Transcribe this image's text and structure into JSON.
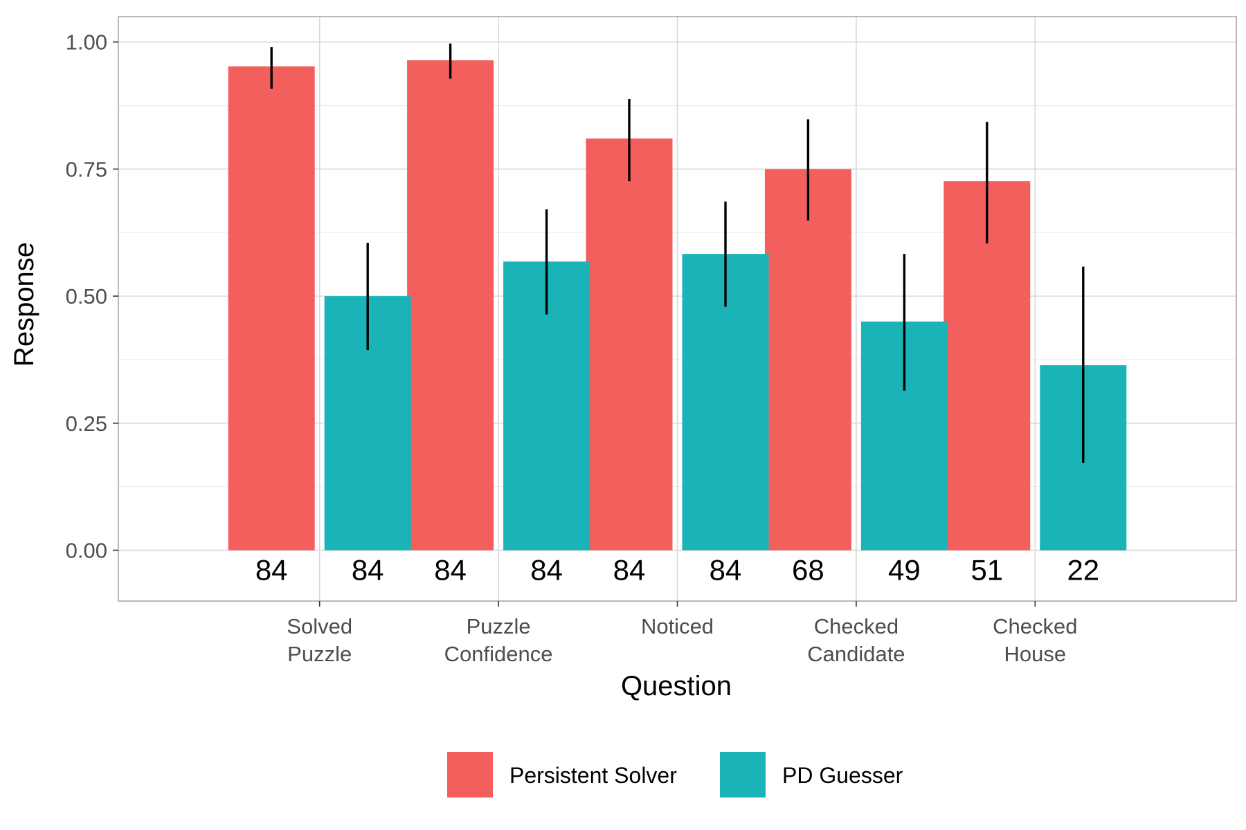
{
  "chart_data": {
    "type": "bar",
    "xlabel": "Question",
    "ylabel": "Response",
    "ylim": [
      -0.1,
      1.05
    ],
    "yticks": [
      "0.00",
      "0.25",
      "0.50",
      "0.75",
      "1.00"
    ],
    "grid": true,
    "legend_position": "bottom",
    "categories": [
      [
        "Solved",
        "Puzzle"
      ],
      [
        "Puzzle",
        "Confidence"
      ],
      [
        "Noticed"
      ],
      [
        "Checked",
        "Candidate"
      ],
      [
        "Checked",
        "House"
      ]
    ],
    "series": [
      {
        "name": "Persistent Solver",
        "color": "#F25F5C",
        "values": [
          0.952,
          0.964,
          0.81,
          0.75,
          0.726
        ],
        "error_low": [
          0.908,
          0.928,
          0.726,
          0.649,
          0.604
        ],
        "error_high": [
          0.99,
          0.997,
          0.888,
          0.848,
          0.843
        ],
        "counts": [
          "84",
          "84",
          "84",
          "68",
          "51"
        ]
      },
      {
        "name": "PD Guesser",
        "color": "#1AB3B7",
        "values": [
          0.5,
          0.568,
          0.583,
          0.45,
          0.364
        ],
        "error_low": [
          0.394,
          0.464,
          0.479,
          0.314,
          0.172
        ],
        "error_high": [
          0.605,
          0.671,
          0.686,
          0.583,
          0.558
        ],
        "counts": [
          "84",
          "84",
          "84",
          "49",
          "22"
        ]
      }
    ]
  }
}
